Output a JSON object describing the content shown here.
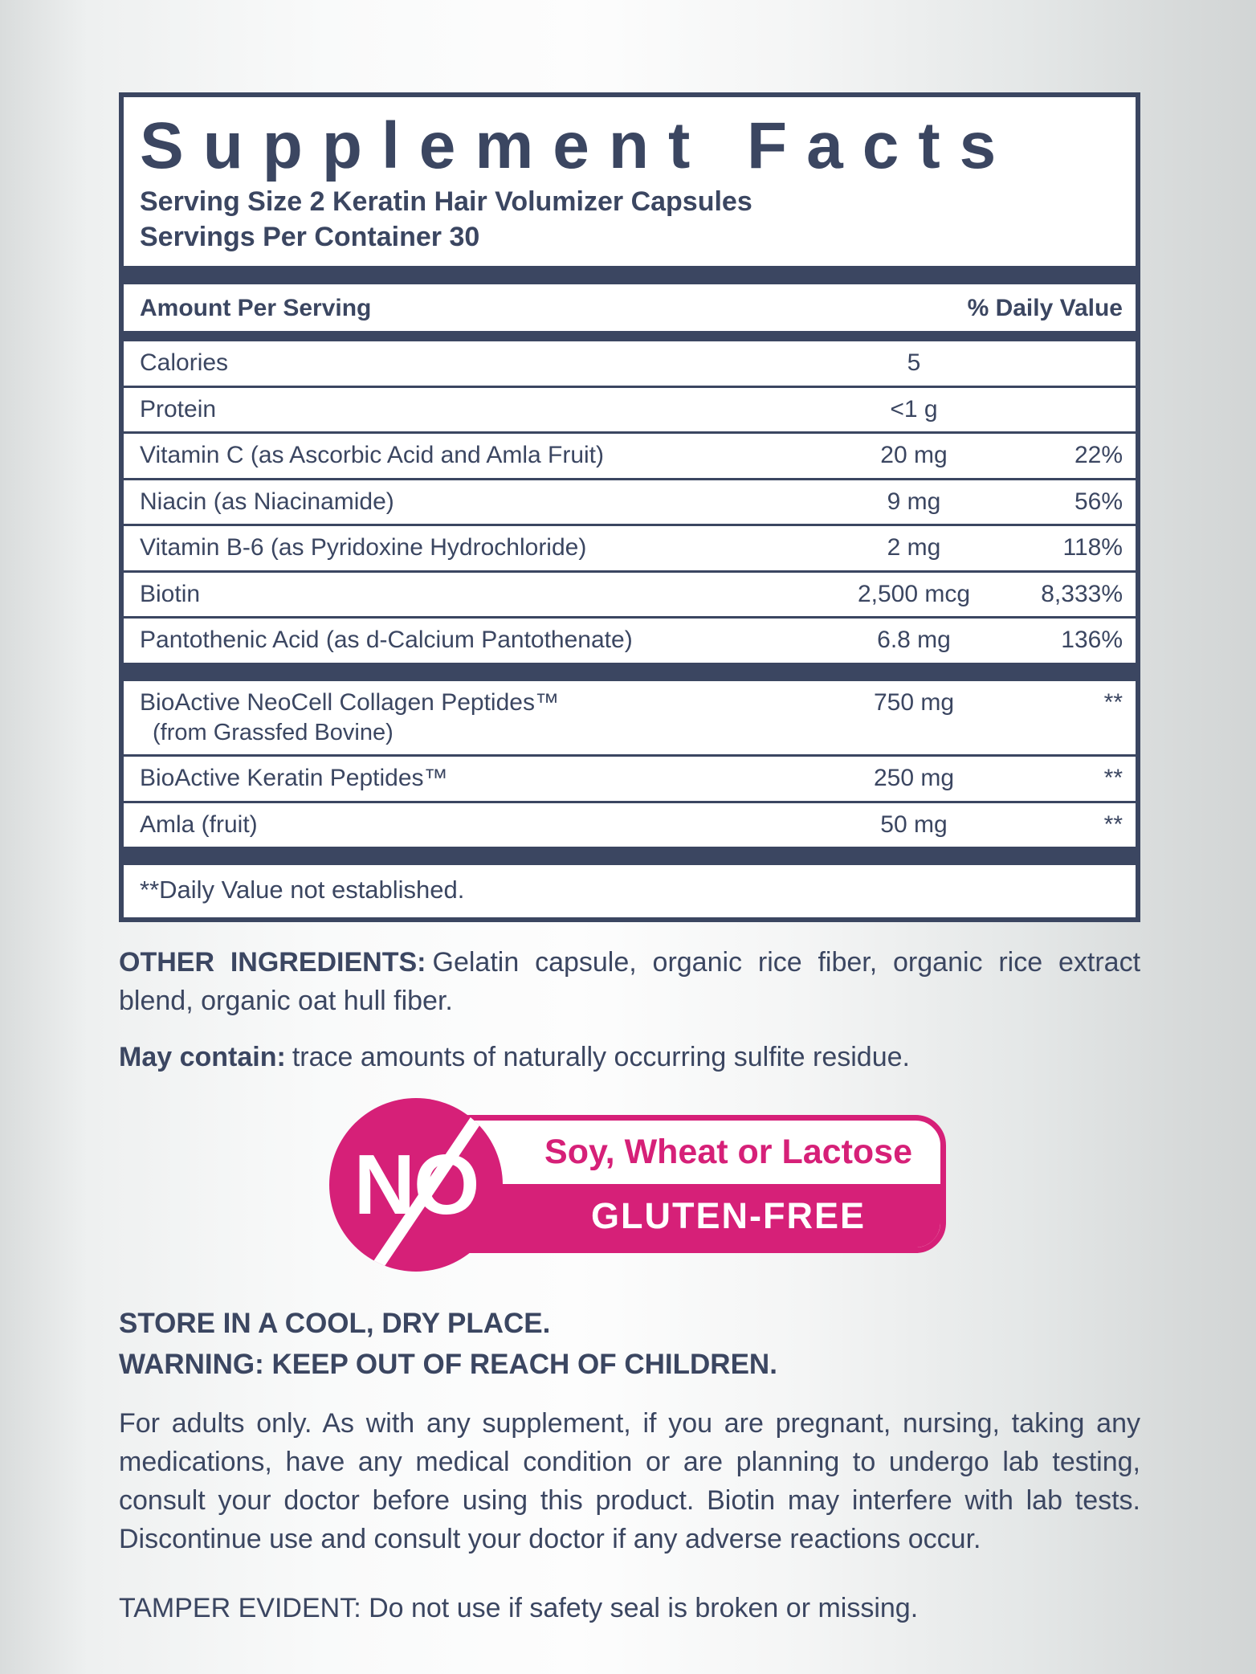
{
  "colors": {
    "navy": "#3b4661",
    "pink": "#d62078"
  },
  "panel": {
    "title": "Supplement Facts",
    "serving_size": "Serving Size 2 Keratin Hair Volumizer Capsules",
    "servings_per_container": "Servings Per Container 30",
    "header": {
      "amount": "Amount Per Serving",
      "dv": "% Daily Value"
    },
    "rows": [
      {
        "name": "Calories",
        "amount": "5",
        "dv": ""
      },
      {
        "name": "Protein",
        "amount": "<1 g",
        "dv": ""
      },
      {
        "name": "Vitamin C (as Ascorbic Acid and Amla Fruit)",
        "amount": "20 mg",
        "dv": "22%"
      },
      {
        "name": "Niacin (as Niacinamide)",
        "amount": "9 mg",
        "dv": "56%"
      },
      {
        "name": "Vitamin B-6 (as Pyridoxine Hydrochloride)",
        "amount": "2 mg",
        "dv": "118%"
      },
      {
        "name": "Biotin",
        "amount": "2,500 mcg",
        "dv": "8,333%"
      },
      {
        "name": "Pantothenic Acid (as d-Calcium Pantothenate)",
        "amount": "6.8 mg",
        "dv": "136%"
      }
    ],
    "blend_rows": [
      {
        "name": "BioActive NeoCell Collagen Peptides™",
        "subname": "(from Grassfed Bovine)",
        "amount": "750 mg",
        "dv": "**"
      },
      {
        "name": "BioActive Keratin Peptides™",
        "subname": "",
        "amount": "250 mg",
        "dv": "**"
      },
      {
        "name": "Amla (fruit)",
        "subname": "",
        "amount": "50 mg",
        "dv": "**"
      }
    ],
    "footnote": "**Daily Value not established."
  },
  "other_ingredients": {
    "label": "OTHER INGREDIENTS:",
    "text": "Gelatin capsule, organic rice fiber, organic rice extract blend, organic oat hull fiber."
  },
  "may_contain": {
    "label": "May contain:",
    "text": "trace amounts of naturally occurring sulfite residue."
  },
  "badge": {
    "no": "NO",
    "line1": "Soy, Wheat or Lactose",
    "line2": "GLUTEN-FREE"
  },
  "storage": "STORE IN A COOL, DRY PLACE.",
  "warning": "WARNING: KEEP OUT OF REACH OF CHILDREN.",
  "disclaimer": "For adults only. As with any supplement, if you are pregnant, nursing, taking any medications, have any medical condition or are planning to undergo lab testing, consult your doctor before using this product. Biotin may interfere with lab tests. Discontinue use and consult your doctor if any adverse reactions occur.",
  "tamper": "TAMPER EVIDENT: Do not use if safety seal is broken or missing."
}
